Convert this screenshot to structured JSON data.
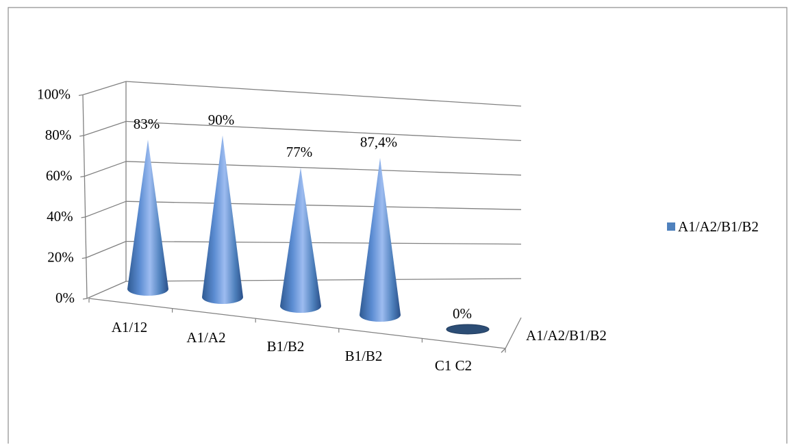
{
  "chart_data": {
    "type": "bar",
    "shape": "cone-3d",
    "categories": [
      "A1/12",
      "A1/A2",
      "B1/B2",
      "B1/B2",
      "C1 C2"
    ],
    "series": [
      {
        "name": "A1/A2/B1/B2",
        "values": [
          83,
          90,
          77,
          87.4,
          0
        ]
      }
    ],
    "data_labels": [
      "83%",
      "90%",
      "77%",
      "87,4%",
      "0%"
    ],
    "y_ticks": [
      "0%",
      "20%",
      "40%",
      "60%",
      "80%",
      "100%"
    ],
    "ylim": [
      0,
      100
    ],
    "depth_axis_label": "A1/A2/B1/B2",
    "legend": {
      "position": "right",
      "entries": [
        "A1/A2/B1/B2"
      ]
    },
    "grid": true,
    "colors": {
      "series": "#4f81bd",
      "series_dark": "#2c4d75",
      "grid": "#808080"
    }
  }
}
